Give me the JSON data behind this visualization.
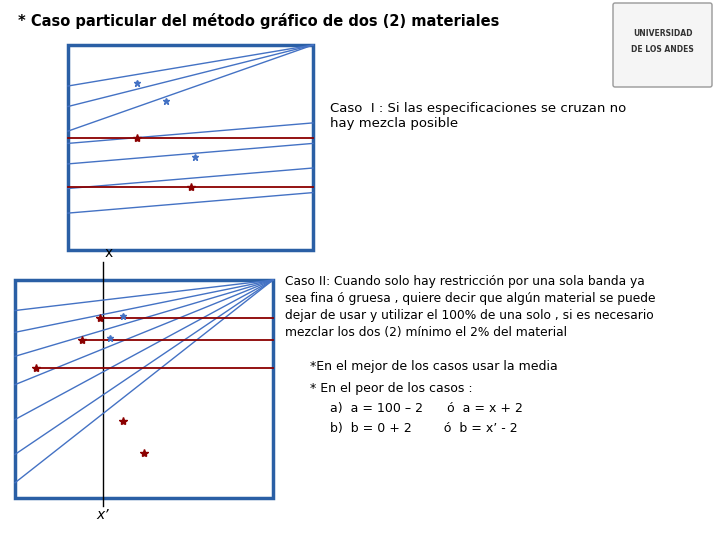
{
  "title": "* Caso particular del método gráfico de dos (2) materiales",
  "title_fontsize": 10.5,
  "bg_color": "#ffffff",
  "box_color": "#2a5fa5",
  "line_color_blue": "#4472c4",
  "line_color_red": "#8b0000",
  "caso1_text": "Caso  I : Si las especificaciones se cruzan no\nhay mezcla posible",
  "caso2_text": "Caso II: Cuando solo hay restricción por una sola banda ya\nsea fina ó gruesa , quiere decir que algún material se puede\ndejar de usar y utilizar el 100% de una solo , si es necesario\nmezclar los dos (2) mínimo el 2% del material",
  "nota1": "*En el mejor de los casos usar la media",
  "nota2": "* En el peor de los casos :",
  "nota3a": "a)  a = 100 – 2      ó  a = x + 2",
  "nota3b": "b)  b = 0 + 2        ó  b = x’ - 2",
  "xlabel1": "x",
  "xlabel2": "x’",
  "font_size_notes": 9
}
